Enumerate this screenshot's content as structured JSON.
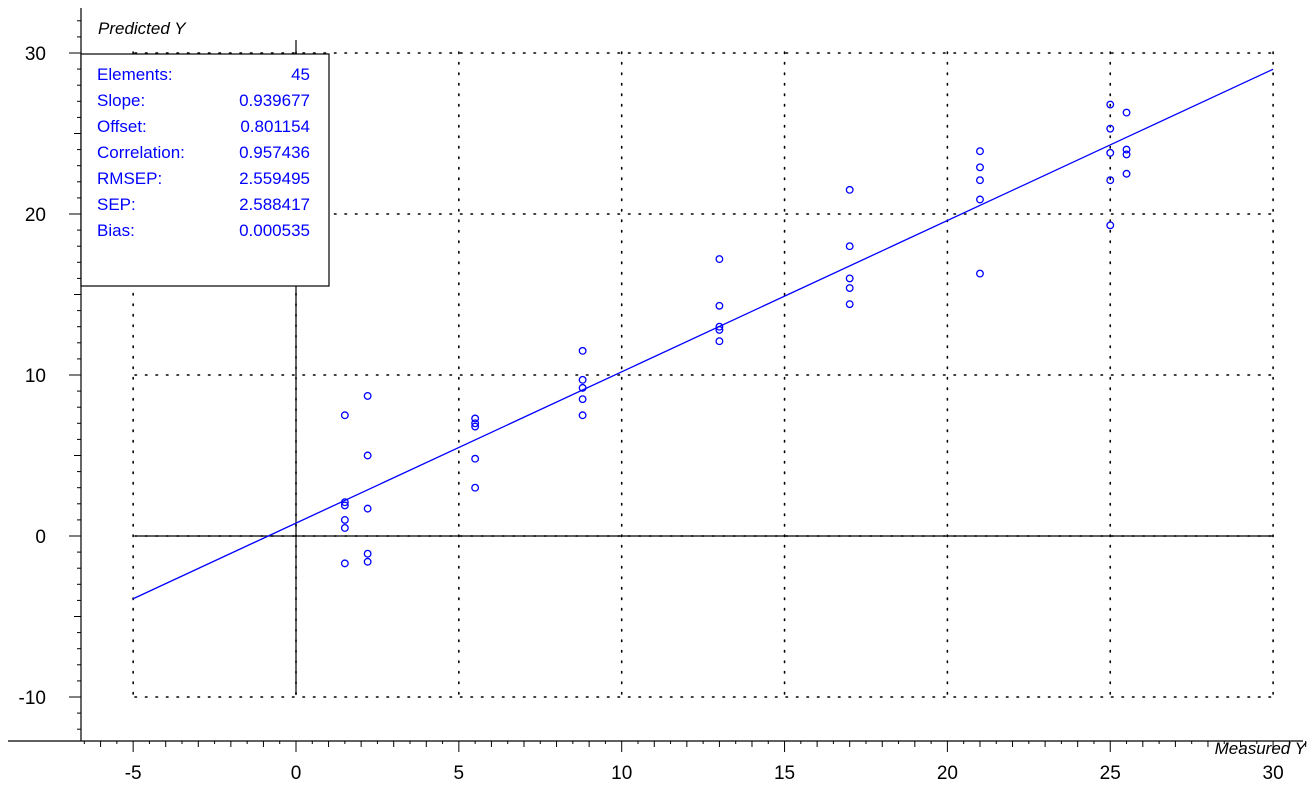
{
  "chart_data": {
    "type": "scatter",
    "xlabel": "Measured Y",
    "ylabel": "Predicted Y",
    "xlim": [
      -6.5,
      31.2
    ],
    "ylim": [
      -12.3,
      32.4
    ],
    "xticks": [
      -5,
      0,
      5,
      10,
      15,
      20,
      25,
      30
    ],
    "yticks": [
      -10,
      0,
      10,
      20,
      30
    ],
    "grid": true,
    "point_color": "#0000ff",
    "line_color": "#0000ff",
    "regression_line": {
      "slope": 0.939677,
      "offset": 0.801154,
      "x_range": [
        -5,
        30
      ]
    },
    "points": [
      {
        "x": 1.5,
        "y": 7.5
      },
      {
        "x": 1.5,
        "y": 2.1
      },
      {
        "x": 1.5,
        "y": 1.9
      },
      {
        "x": 1.5,
        "y": 1.0
      },
      {
        "x": 1.5,
        "y": 0.5
      },
      {
        "x": 1.5,
        "y": -1.7
      },
      {
        "x": 2.2,
        "y": 8.7
      },
      {
        "x": 2.2,
        "y": 5.0
      },
      {
        "x": 2.2,
        "y": 1.7
      },
      {
        "x": 2.2,
        "y": -1.1
      },
      {
        "x": 2.2,
        "y": -1.6
      },
      {
        "x": 5.5,
        "y": 7.3
      },
      {
        "x": 5.5,
        "y": 7.0
      },
      {
        "x": 5.5,
        "y": 6.8
      },
      {
        "x": 5.5,
        "y": 4.8
      },
      {
        "x": 5.5,
        "y": 3.0
      },
      {
        "x": 8.8,
        "y": 11.5
      },
      {
        "x": 8.8,
        "y": 9.7
      },
      {
        "x": 8.8,
        "y": 9.2
      },
      {
        "x": 8.8,
        "y": 8.5
      },
      {
        "x": 8.8,
        "y": 7.5
      },
      {
        "x": 13.0,
        "y": 17.2
      },
      {
        "x": 13.0,
        "y": 14.3
      },
      {
        "x": 13.0,
        "y": 13.0
      },
      {
        "x": 13.0,
        "y": 12.8
      },
      {
        "x": 13.0,
        "y": 12.1
      },
      {
        "x": 17.0,
        "y": 21.5
      },
      {
        "x": 17.0,
        "y": 18.0
      },
      {
        "x": 17.0,
        "y": 16.0
      },
      {
        "x": 17.0,
        "y": 15.4
      },
      {
        "x": 17.0,
        "y": 14.4
      },
      {
        "x": 21.0,
        "y": 23.9
      },
      {
        "x": 21.0,
        "y": 22.9
      },
      {
        "x": 21.0,
        "y": 22.1
      },
      {
        "x": 21.0,
        "y": 20.9
      },
      {
        "x": 21.0,
        "y": 16.3
      },
      {
        "x": 25.0,
        "y": 26.8
      },
      {
        "x": 25.0,
        "y": 25.3
      },
      {
        "x": 25.0,
        "y": 23.8
      },
      {
        "x": 25.0,
        "y": 22.1
      },
      {
        "x": 25.0,
        "y": 19.3
      },
      {
        "x": 25.5,
        "y": 26.3
      },
      {
        "x": 25.5,
        "y": 24.0
      },
      {
        "x": 25.5,
        "y": 23.7
      },
      {
        "x": 25.5,
        "y": 22.5
      }
    ]
  },
  "stats_box": {
    "rows": [
      {
        "label": "Elements:",
        "value": "45"
      },
      {
        "label": "Slope:",
        "value": "0.939677"
      },
      {
        "label": "Offset:",
        "value": "0.801154"
      },
      {
        "label": "Correlation:",
        "value": "0.957436"
      },
      {
        "label": "RMSEP:",
        "value": "2.559495"
      },
      {
        "label": "SEP:",
        "value": "2.588417"
      },
      {
        "label": "Bias:",
        "value": "0.000535"
      }
    ],
    "text_color": "#0000ff"
  }
}
